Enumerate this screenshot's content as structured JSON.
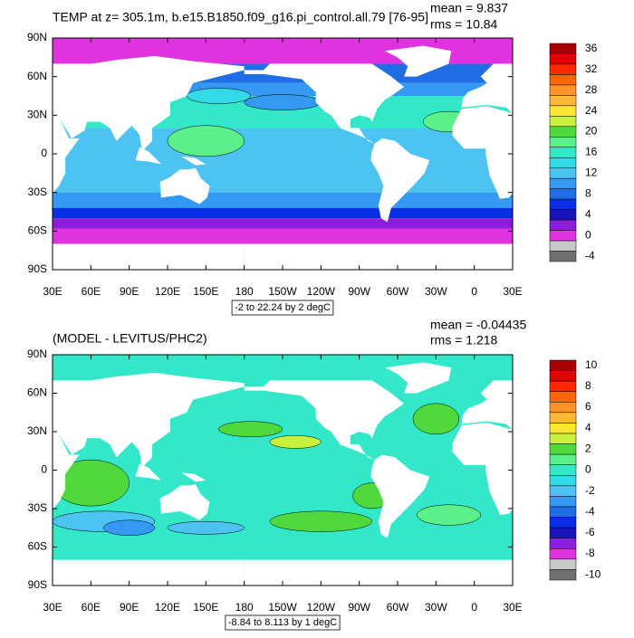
{
  "panels": [
    {
      "title": "TEMP at z= 305.1m, b.e15.B1850.f09_g16.pi_control.all.79 [76-95]",
      "stats": [
        "mean = 9.837",
        "rms = 10.84"
      ],
      "lat_labels": [
        "90N",
        "60N",
        "30N",
        "0",
        "30S",
        "60S",
        "90S"
      ],
      "lon_labels": [
        "30E",
        "60E",
        "90E",
        "120E",
        "150E",
        "180",
        "150W",
        "120W",
        "90W",
        "60W",
        "30W",
        "0",
        "30E"
      ],
      "contour_note": "-2 to 22.24 by 2 degC",
      "colorbar": {
        "labels": [
          36,
          32,
          28,
          24,
          20,
          16,
          12,
          8,
          4,
          0,
          -4
        ],
        "colors": [
          "#a80000",
          "#e00000",
          "#ff2a00",
          "#ff6600",
          "#ff9326",
          "#ffb833",
          "#ffe633",
          "#c8f03c",
          "#4fd93c",
          "#5cf08a",
          "#33e8c8",
          "#33d9e6",
          "#4dc3f2",
          "#3399f2",
          "#1f6ee6",
          "#0a2ee6",
          "#1a14b8",
          "#8c1fd9",
          "#e033e0",
          "#c8c8c8",
          "#707070"
        ]
      }
    },
    {
      "title": "(MODEL - LEVITUS/PHC2)",
      "stats": [
        "mean = -0.04435",
        "rms = 1.218"
      ],
      "lat_labels": [
        "90N",
        "60N",
        "30N",
        "0",
        "30S",
        "60S",
        "90S"
      ],
      "lon_labels": [
        "30E",
        "60E",
        "90E",
        "120E",
        "150E",
        "180",
        "150W",
        "120W",
        "90W",
        "60W",
        "30W",
        "0",
        "30E"
      ],
      "contour_note": "-8.84 to 8.113 by 1 degC",
      "colorbar": {
        "labels": [
          10,
          8,
          6,
          4,
          2,
          0,
          -2,
          -4,
          -6,
          -8,
          -10
        ],
        "colors": [
          "#a80000",
          "#e00000",
          "#ff2a00",
          "#ff6600",
          "#ff9326",
          "#ffb833",
          "#ffe633",
          "#c8f03c",
          "#4fd93c",
          "#5cf08a",
          "#33e8c8",
          "#33d9e6",
          "#4dc3f2",
          "#3399f2",
          "#1f6ee6",
          "#0a2ee6",
          "#1a14b8",
          "#8c1fd9",
          "#e033e0",
          "#c8c8c8",
          "#707070"
        ]
      }
    }
  ]
}
